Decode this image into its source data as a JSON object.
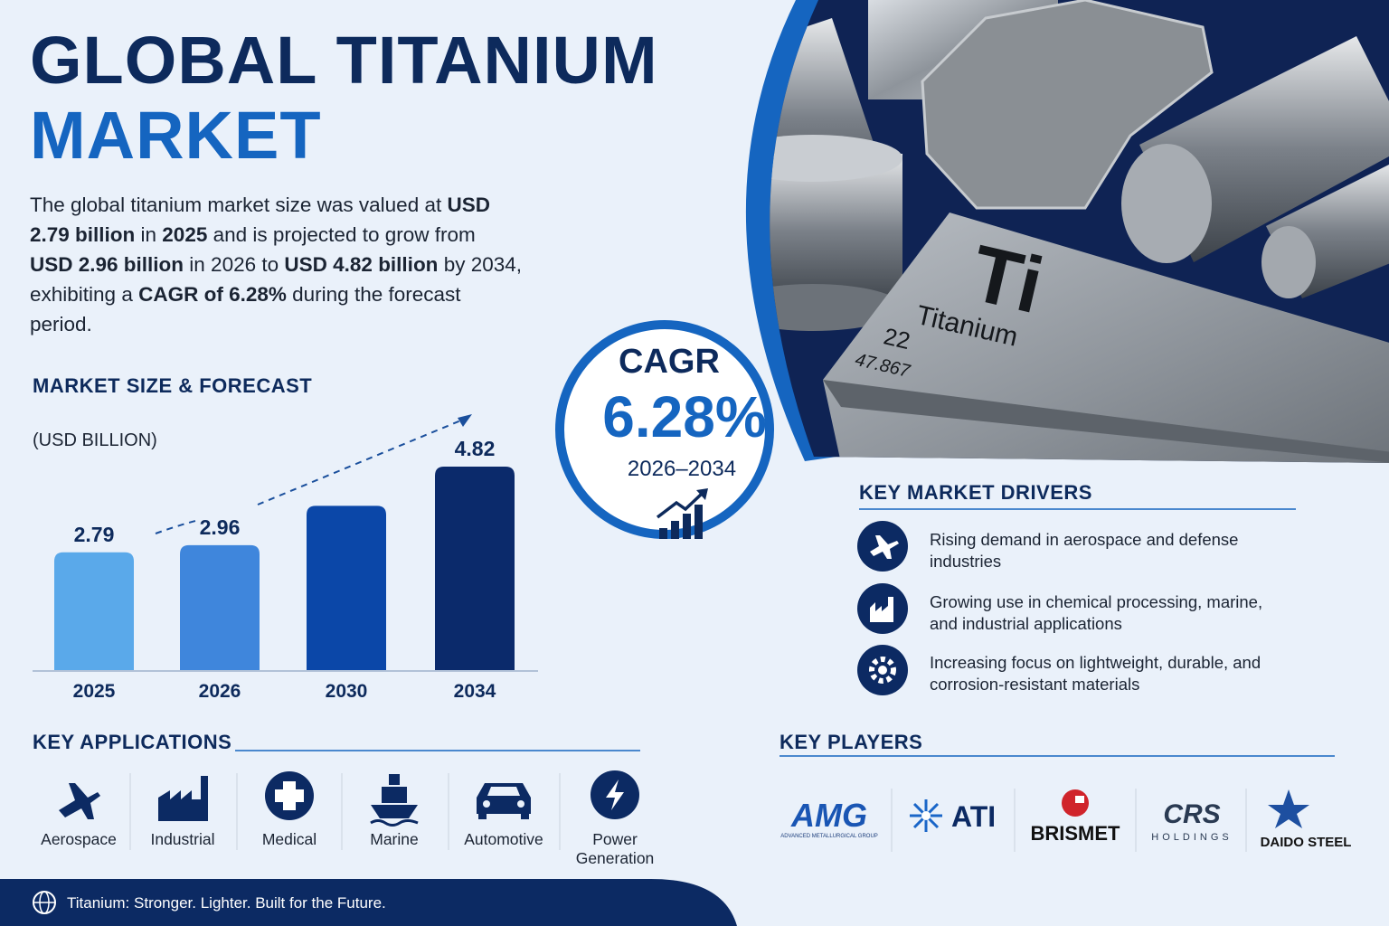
{
  "header": {
    "title_line1": "GLOBAL TITANIUM",
    "title_line2": "MARKET"
  },
  "summary": [
    {
      "text": "The global titanium market size was valued at ",
      "bold": false
    },
    {
      "text": "USD 2.79 billion",
      "bold": true
    },
    {
      "text": " in ",
      "bold": false
    },
    {
      "text": "2025",
      "bold": true
    },
    {
      "text": " and is projected to grow from ",
      "bold": false
    },
    {
      "text": "USD 2.96 billion",
      "bold": true
    },
    {
      "text": " in 2026 to ",
      "bold": false
    },
    {
      "text": "USD 4.82 billion",
      "bold": true
    },
    {
      "text": " by 2034, exhibiting a ",
      "bold": false
    },
    {
      "text": "CAGR of 6.28%",
      "bold": true
    },
    {
      "text": " during the forecast period.",
      "bold": false
    }
  ],
  "chart_data": {
    "type": "bar",
    "title": "MARKET SIZE & FORECAST",
    "unit_label": "(USD BILLION)",
    "categories": [
      "2025",
      "2026",
      "2030",
      "2034"
    ],
    "values": [
      2.79,
      2.96,
      3.89,
      4.82
    ],
    "value_labels": [
      "2.79",
      "2.96",
      null,
      "4.82"
    ],
    "colors": [
      "#5aa9ea",
      "#3f86dc",
      "#0b47a8",
      "#0b2a6b"
    ]
  },
  "cagr": {
    "label": "CAGR",
    "value": "6.28%",
    "period": "2026–2034"
  },
  "image": {
    "symbol": "Ti",
    "name": "Titanium",
    "number": "22",
    "mass": "47.867"
  },
  "drivers": {
    "title": "KEY MARKET DRIVERS",
    "items": [
      "Rising demand in aerospace and defense industries",
      "Growing use in chemical processing, marine, and industrial applications",
      "Increasing focus on lightweight, durable, and corrosion-resistant materials"
    ]
  },
  "applications": {
    "title": "KEY APPLICATIONS",
    "items": [
      "Aerospace",
      "Industrial",
      "Medical",
      "Marine",
      "Automotive",
      "Power Generation"
    ]
  },
  "players": {
    "title": "KEY PLAYERS",
    "items": [
      {
        "name": "AMG",
        "subtitle": "ADVANCED METALLURGICAL GROUP"
      },
      {
        "name": "ATI"
      },
      {
        "name": "BRISMET"
      },
      {
        "name": "CRS",
        "subtitle": "HOLDINGS"
      },
      {
        "name": "DAIDO STEEL"
      }
    ]
  },
  "footer": {
    "text": "Titanium: Stronger. Lighter. Built for the Future."
  }
}
